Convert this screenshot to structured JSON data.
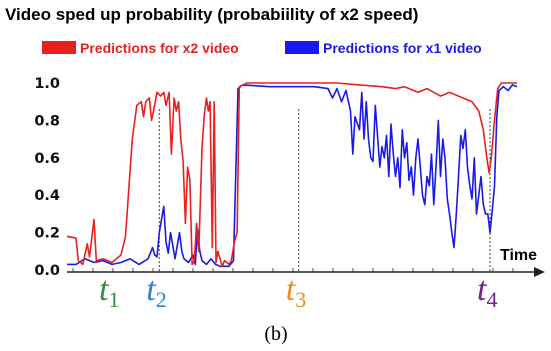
{
  "chart_data": {
    "type": "line",
    "title": "Video sped up probability (probabiility of x2 speed)",
    "caption": "(b)",
    "xlabel": "Time",
    "ylabel": "",
    "xlim": [
      0,
      100
    ],
    "ylim": [
      0,
      1.05
    ],
    "yticks": [
      "0.0",
      "0.2",
      "0.4",
      "0.6",
      "0.8",
      "1.0"
    ],
    "legend_position": "top",
    "colors": {
      "x2": "#e8211e",
      "x1": "#1a1ae6"
    },
    "series": [
      {
        "name": "Predictions for x2 video",
        "color": "#e8211e",
        "values": [
          [
            0,
            0.18
          ],
          [
            2,
            0.17
          ],
          [
            2.5,
            0.05
          ],
          [
            3.5,
            0.03
          ],
          [
            4.5,
            0.14
          ],
          [
            5,
            0.07
          ],
          [
            6,
            0.27
          ],
          [
            6.5,
            0.05
          ],
          [
            8,
            0.06
          ],
          [
            10,
            0.04
          ],
          [
            12,
            0.08
          ],
          [
            13,
            0.18
          ],
          [
            14.5,
            0.7
          ],
          [
            15.5,
            0.88
          ],
          [
            16.5,
            0.9
          ],
          [
            17,
            0.82
          ],
          [
            17.5,
            0.9
          ],
          [
            18.3,
            0.92
          ],
          [
            18.8,
            0.8
          ],
          [
            19.3,
            0.86
          ],
          [
            20,
            0.95
          ],
          [
            20.8,
            0.93
          ],
          [
            21.5,
            0.95
          ],
          [
            22,
            0.88
          ],
          [
            22.7,
            0.95
          ],
          [
            23.2,
            0.62
          ],
          [
            23.8,
            0.92
          ],
          [
            24.3,
            0.85
          ],
          [
            24.8,
            0.9
          ],
          [
            25.3,
            0.7
          ],
          [
            25.8,
            0.58
          ],
          [
            26.3,
            0.25
          ],
          [
            26.8,
            0.55
          ],
          [
            27.3,
            0.48
          ],
          [
            27.8,
            0.03
          ],
          [
            28.3,
            0.05
          ],
          [
            28.8,
            0.25
          ],
          [
            29.3,
            0.1
          ],
          [
            30,
            0.65
          ],
          [
            30.5,
            0.83
          ],
          [
            31,
            0.92
          ],
          [
            31.4,
            0.85
          ],
          [
            31.8,
            0.9
          ],
          [
            32.3,
            0.12
          ],
          [
            32.7,
            0.9
          ],
          [
            33.1,
            0.04
          ],
          [
            33.5,
            0.1
          ],
          [
            34,
            0.06
          ],
          [
            34.5,
            0.02
          ],
          [
            35,
            0.05
          ],
          [
            35.5,
            0.04
          ],
          [
            36,
            0.03
          ],
          [
            36.5,
            0.05
          ],
          [
            37.2,
            0.15
          ],
          [
            37.8,
            0.2
          ],
          [
            38.3,
            0.98
          ],
          [
            40,
            1.0
          ],
          [
            50,
            1.0
          ],
          [
            60,
            1.0
          ],
          [
            65,
            0.99
          ],
          [
            70,
            0.98
          ],
          [
            73,
            0.97
          ],
          [
            75,
            0.98
          ],
          [
            78,
            0.95
          ],
          [
            80,
            0.97
          ],
          [
            83,
            0.93
          ],
          [
            85,
            0.95
          ],
          [
            88,
            0.92
          ],
          [
            90,
            0.9
          ],
          [
            91.5,
            0.85
          ],
          [
            92.5,
            0.75
          ],
          [
            93.3,
            0.6
          ],
          [
            93.8,
            0.52
          ],
          [
            94.3,
            0.6
          ],
          [
            95,
            0.8
          ],
          [
            95.7,
            0.97
          ],
          [
            96.5,
            1.0
          ],
          [
            100,
            1.0
          ]
        ]
      },
      {
        "name": "Predictions for x1 video",
        "color": "#1a1ae6",
        "values": [
          [
            0,
            0.03
          ],
          [
            2,
            0.03
          ],
          [
            4,
            0.06
          ],
          [
            6,
            0.04
          ],
          [
            8,
            0.05
          ],
          [
            10,
            0.03
          ],
          [
            12,
            0.04
          ],
          [
            14,
            0.06
          ],
          [
            16,
            0.03
          ],
          [
            18,
            0.06
          ],
          [
            19,
            0.12
          ],
          [
            19.5,
            0.08
          ],
          [
            20,
            0.07
          ],
          [
            20.5,
            0.2
          ],
          [
            21,
            0.27
          ],
          [
            21.5,
            0.34
          ],
          [
            22,
            0.15
          ],
          [
            22.5,
            0.09
          ],
          [
            23,
            0.2
          ],
          [
            23.5,
            0.13
          ],
          [
            24,
            0.06
          ],
          [
            25,
            0.2
          ],
          [
            25.5,
            0.1
          ],
          [
            26,
            0.06
          ],
          [
            27,
            0.04
          ],
          [
            28,
            0.08
          ],
          [
            28.5,
            0.03
          ],
          [
            29,
            0.22
          ],
          [
            29.5,
            0.1
          ],
          [
            30,
            0.05
          ],
          [
            31,
            0.03
          ],
          [
            32,
            0.06
          ],
          [
            33,
            0.03
          ],
          [
            34,
            0.02
          ],
          [
            35,
            0.02
          ],
          [
            36,
            0.02
          ],
          [
            37,
            0.05
          ],
          [
            38,
            0.97
          ],
          [
            39,
            0.99
          ],
          [
            45,
            0.98
          ],
          [
            50,
            0.98
          ],
          [
            55,
            0.98
          ],
          [
            58,
            0.97
          ],
          [
            59,
            0.92
          ],
          [
            60,
            0.97
          ],
          [
            61,
            0.9
          ],
          [
            62,
            0.96
          ],
          [
            63,
            0.85
          ],
          [
            63.5,
            0.62
          ],
          [
            64,
            0.82
          ],
          [
            65,
            0.75
          ],
          [
            65.5,
            0.95
          ],
          [
            66,
            0.7
          ],
          [
            66.5,
            0.9
          ],
          [
            67,
            0.7
          ],
          [
            67.5,
            0.6
          ],
          [
            68,
            0.58
          ],
          [
            68.5,
            0.88
          ],
          [
            69,
            0.72
          ],
          [
            69.5,
            0.55
          ],
          [
            70,
            0.66
          ],
          [
            70.5,
            0.6
          ],
          [
            71,
            0.72
          ],
          [
            71.5,
            0.5
          ],
          [
            72,
            0.78
          ],
          [
            72.5,
            0.62
          ],
          [
            73,
            0.5
          ],
          [
            73.5,
            0.6
          ],
          [
            74,
            0.44
          ],
          [
            74.5,
            0.75
          ],
          [
            75,
            0.6
          ],
          [
            75.5,
            0.68
          ],
          [
            76,
            0.48
          ],
          [
            76.5,
            0.55
          ],
          [
            77,
            0.4
          ],
          [
            77.5,
            0.6
          ],
          [
            78,
            0.7
          ],
          [
            78.5,
            0.55
          ],
          [
            79,
            0.4
          ],
          [
            79.5,
            0.35
          ],
          [
            80,
            0.5
          ],
          [
            80.5,
            0.45
          ],
          [
            81,
            0.62
          ],
          [
            81.5,
            0.35
          ],
          [
            82,
            0.55
          ],
          [
            82.5,
            0.8
          ],
          [
            83,
            0.5
          ],
          [
            83.5,
            0.7
          ],
          [
            84,
            0.6
          ],
          [
            84.5,
            0.38
          ],
          [
            85,
            0.3
          ],
          [
            85.5,
            0.2
          ],
          [
            86,
            0.12
          ],
          [
            86.5,
            0.3
          ],
          [
            87,
            0.5
          ],
          [
            87.5,
            0.72
          ],
          [
            88,
            0.65
          ],
          [
            88.5,
            0.75
          ],
          [
            89,
            0.55
          ],
          [
            89.5,
            0.45
          ],
          [
            90,
            0.38
          ],
          [
            90.5,
            0.6
          ],
          [
            91,
            0.3
          ],
          [
            91.5,
            0.4
          ],
          [
            92,
            0.5
          ],
          [
            92.5,
            0.35
          ],
          [
            93,
            0.3
          ],
          [
            93.5,
            0.3
          ],
          [
            94,
            0.2
          ],
          [
            94.5,
            0.32
          ],
          [
            95,
            0.45
          ],
          [
            95.5,
            0.82
          ],
          [
            96,
            0.96
          ],
          [
            97,
            0.98
          ],
          [
            98,
            0.96
          ],
          [
            99,
            0.99
          ],
          [
            100,
            0.98
          ]
        ]
      }
    ],
    "time_markers": [
      {
        "label": "t",
        "sub": "1",
        "x": 10,
        "color": "#2f8f3f",
        "dotted_line": false
      },
      {
        "label": "t",
        "sub": "2",
        "x": 20.5,
        "color": "#2f7fd6",
        "dotted_line": true
      },
      {
        "label": "t",
        "sub": "3",
        "x": 51.5,
        "color": "#f08a1c",
        "dotted_line": true
      },
      {
        "label": "t",
        "sub": "4",
        "x": 94,
        "color": "#7a1d8e",
        "dotted_line": true
      }
    ]
  }
}
